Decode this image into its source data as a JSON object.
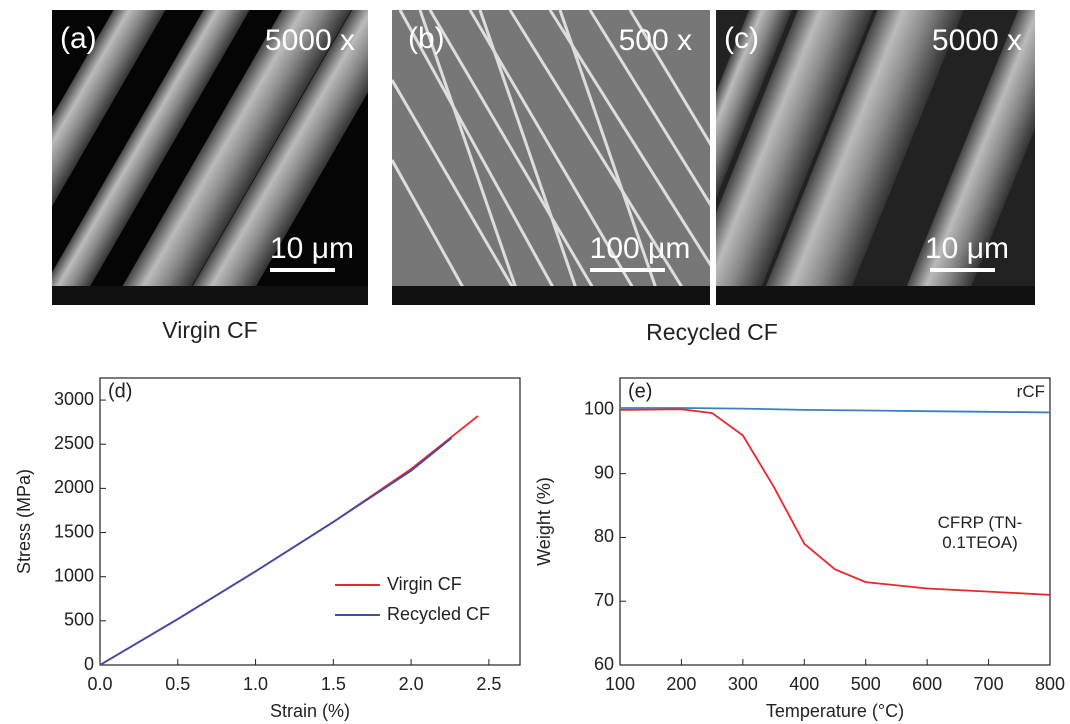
{
  "images": [
    {
      "label": "(a)",
      "magnification": "5000 x",
      "scale_bar": "10 μm"
    },
    {
      "label": "(b)",
      "magnification": "500 x",
      "scale_bar": "100 μm"
    },
    {
      "label": "(c)",
      "magnification": "5000 x",
      "scale_bar": "10 μm"
    }
  ],
  "captions": [
    "Virgin CF",
    "Recycled CF"
  ],
  "chart_data": [
    {
      "type": "line",
      "panel_label": "(d)",
      "x_label": "Strain (%)",
      "y_label": "Stress (MPa)",
      "xlim": [
        0,
        2.7
      ],
      "ylim": [
        0,
        3250
      ],
      "xticks": [
        {
          "value": 0,
          "label": "0.0"
        },
        0.5,
        {
          "value": 1,
          "label": "1.0"
        },
        1.5,
        {
          "value": 2,
          "label": "2.0"
        },
        2.5
      ],
      "yticks": [
        0,
        500,
        1000,
        1500,
        2000,
        2500,
        3000
      ],
      "legend": "lower right",
      "series": [
        {
          "name": "Virgin CF",
          "color": "#e8262b",
          "x": [
            0,
            0.5,
            1.0,
            1.5,
            2.0,
            2.43
          ],
          "values": [
            0,
            520,
            1060,
            1620,
            2220,
            2820
          ]
        },
        {
          "name": "Recycled CF",
          "color": "#3a4fa8",
          "x": [
            0,
            0.5,
            1.0,
            1.5,
            2.0,
            2.26
          ],
          "values": [
            0,
            520,
            1060,
            1620,
            2200,
            2570
          ]
        }
      ]
    },
    {
      "type": "line",
      "panel_label": "(e)",
      "x_label": "Temperature (°C)",
      "y_label": "Weight (%)",
      "xlim": [
        100,
        800
      ],
      "ylim": [
        60,
        105
      ],
      "xticks": [
        100,
        200,
        300,
        400,
        500,
        600,
        700,
        800
      ],
      "yticks": [
        60,
        70,
        80,
        90,
        100
      ],
      "legend": "none",
      "series": [
        {
          "name": "rCF",
          "color": "#3d7fc4",
          "x": [
            100,
            200,
            300,
            400,
            500,
            600,
            700,
            800
          ],
          "values": [
            100.3,
            100.3,
            100.2,
            100.0,
            99.9,
            99.8,
            99.7,
            99.6
          ]
        },
        {
          "name": "CFRP (TN-0.1TEOA)",
          "color": "#e8262b",
          "x": [
            100,
            200,
            250,
            300,
            350,
            400,
            450,
            500,
            600,
            700,
            800
          ],
          "values": [
            100,
            100.1,
            99.5,
            96,
            88,
            79,
            75,
            73,
            72,
            71.5,
            71
          ]
        }
      ]
    }
  ]
}
